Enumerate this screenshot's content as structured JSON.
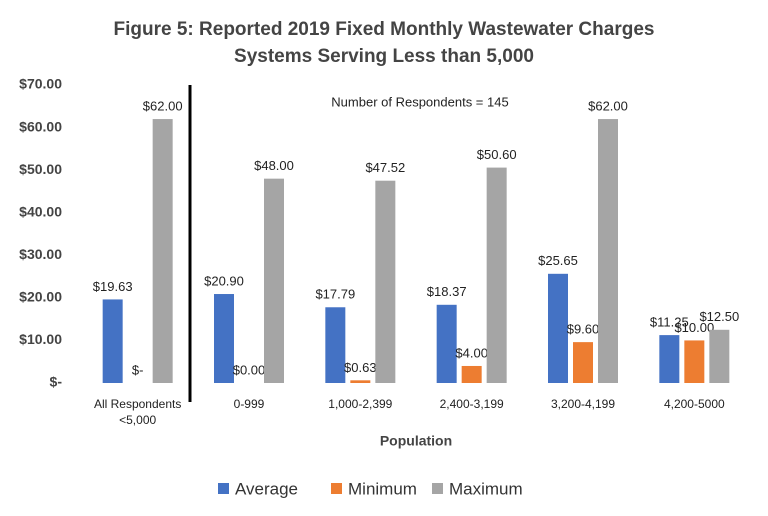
{
  "chart_data": {
    "type": "bar",
    "title": [
      "Figure 5: Reported 2019 Fixed Monthly Wastewater Charges",
      "Systems Serving Less than 5,000"
    ],
    "annotation": "Number of Respondents = 145",
    "x_label": "Population",
    "categories": [
      "All Respondents <5,000",
      "0-999",
      "1,000-2,399",
      "2,400-3,199",
      "3,200-4,199",
      "4,200-5000"
    ],
    "series": [
      {
        "name": "Average",
        "color": "#4472c4",
        "values": [
          19.63,
          20.9,
          17.79,
          18.37,
          25.65,
          11.25
        ],
        "value_labels": [
          "$19.63",
          "$20.90",
          "$17.79",
          "$18.37",
          "$25.65",
          "$11.25"
        ]
      },
      {
        "name": "Minimum",
        "color": "#ed7d31",
        "values": [
          0,
          0.0,
          0.63,
          4.0,
          9.6,
          10.0
        ],
        "value_labels": [
          "$-",
          "$0.00",
          "$0.63",
          "$4.00",
          "$9.60",
          "$10.00"
        ]
      },
      {
        "name": "Maximum",
        "color": "#a5a5a5",
        "values": [
          62.0,
          48.0,
          47.52,
          50.6,
          62.0,
          12.5
        ],
        "value_labels": [
          "$62.00",
          "$48.00",
          "$47.52",
          "$50.60",
          "$62.00",
          "$12.50"
        ]
      }
    ],
    "ylim": [
      0,
      70
    ],
    "yticks": [
      {
        "value": 0,
        "label": "$-"
      },
      {
        "value": 10,
        "label": "$10.00"
      },
      {
        "value": 20,
        "label": "$20.00"
      },
      {
        "value": 30,
        "label": "$30.00"
      },
      {
        "value": 40,
        "label": "$40.00"
      },
      {
        "value": 50,
        "label": "$50.00"
      },
      {
        "value": 60,
        "label": "$60.00"
      },
      {
        "value": 70,
        "label": "$70.00"
      }
    ],
    "grid": false,
    "legend": "bottom"
  }
}
